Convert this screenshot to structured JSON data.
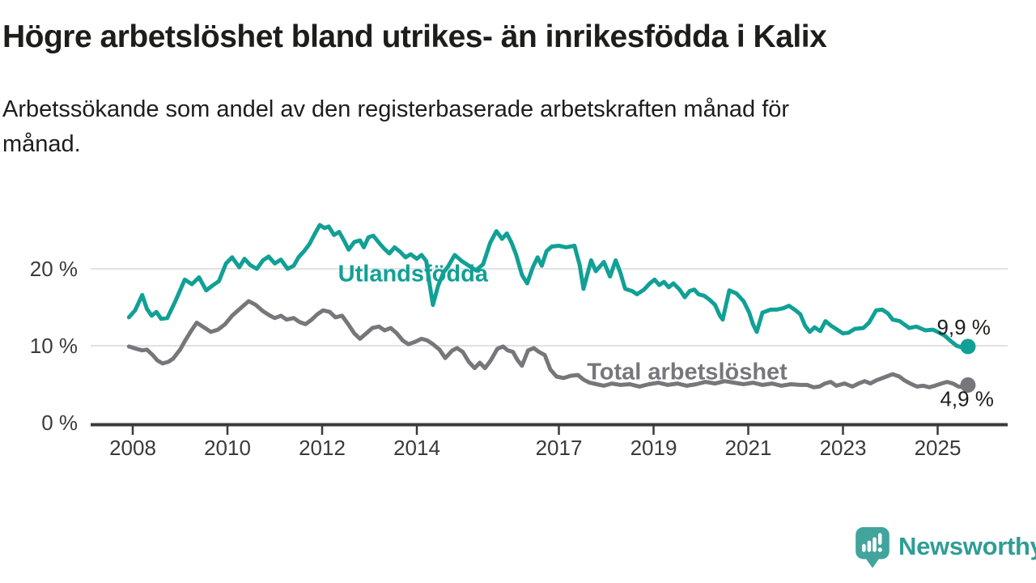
{
  "header": {
    "title": "Högre arbetslöshet bland utrikes- än inrikesfödda i Kalix",
    "subtitle": "Arbetssökande som andel av den registerbaserade arbetskraften månad för\nmånad."
  },
  "chart_data": {
    "type": "line",
    "title": "Högre arbetslöshet bland utrikes- än inrikesfödda i Kalix",
    "xlabel": "",
    "ylabel": "Arbetssökande som andel av den registerbaserade arbetskraften",
    "xlim": [
      2007.1,
      2026.5
    ],
    "ylim": [
      0,
      27
    ],
    "grid": "horizontal-light",
    "x_axis": {
      "ticks": [
        2008,
        2010,
        2012,
        2014,
        2017,
        2019,
        2021,
        2023,
        2025
      ],
      "tick_labels": [
        "2008",
        "2010",
        "2012",
        "2014",
        "2017",
        "2019",
        "2021",
        "2023",
        "2025"
      ]
    },
    "y_axis": {
      "ticks": [
        0,
        10,
        20
      ],
      "tick_labels": [
        "0 %",
        "10 %",
        "20 %"
      ]
    },
    "series": [
      {
        "name": "Total arbetslöshet",
        "color": "#76767b",
        "label_pos": [
          2019.71,
          6.6
        ],
        "end_label": "4,9 %",
        "end_value": 4.9,
        "points": [
          [
            2007.92,
            9.9
          ],
          [
            2008.08,
            9.6
          ],
          [
            2008.2,
            9.4
          ],
          [
            2008.3,
            9.5
          ],
          [
            2008.42,
            8.8
          ],
          [
            2008.52,
            8.1
          ],
          [
            2008.63,
            7.7
          ],
          [
            2008.75,
            7.9
          ],
          [
            2008.85,
            8.3
          ],
          [
            2009.0,
            9.5
          ],
          [
            2009.12,
            10.8
          ],
          [
            2009.22,
            11.8
          ],
          [
            2009.35,
            13.0
          ],
          [
            2009.5,
            12.4
          ],
          [
            2009.65,
            11.8
          ],
          [
            2009.8,
            12.1
          ],
          [
            2009.95,
            12.8
          ],
          [
            2010.1,
            13.9
          ],
          [
            2010.3,
            15.0
          ],
          [
            2010.45,
            15.8
          ],
          [
            2010.6,
            15.3
          ],
          [
            2010.75,
            14.5
          ],
          [
            2010.9,
            13.9
          ],
          [
            2011.0,
            13.6
          ],
          [
            2011.13,
            13.9
          ],
          [
            2011.25,
            13.4
          ],
          [
            2011.4,
            13.6
          ],
          [
            2011.52,
            13.1
          ],
          [
            2011.65,
            12.8
          ],
          [
            2011.78,
            13.4
          ],
          [
            2011.9,
            14.1
          ],
          [
            2012.02,
            14.6
          ],
          [
            2012.16,
            14.4
          ],
          [
            2012.28,
            13.7
          ],
          [
            2012.42,
            13.9
          ],
          [
            2012.55,
            12.8
          ],
          [
            2012.68,
            11.6
          ],
          [
            2012.8,
            10.9
          ],
          [
            2012.93,
            11.6
          ],
          [
            2013.06,
            12.3
          ],
          [
            2013.2,
            12.5
          ],
          [
            2013.32,
            12.0
          ],
          [
            2013.45,
            12.3
          ],
          [
            2013.58,
            11.6
          ],
          [
            2013.7,
            10.7
          ],
          [
            2013.82,
            10.2
          ],
          [
            2013.96,
            10.5
          ],
          [
            2014.1,
            10.9
          ],
          [
            2014.22,
            10.7
          ],
          [
            2014.34,
            10.2
          ],
          [
            2014.48,
            9.5
          ],
          [
            2014.6,
            8.4
          ],
          [
            2014.75,
            9.4
          ],
          [
            2014.85,
            9.7
          ],
          [
            2014.97,
            9.2
          ],
          [
            2015.1,
            7.9
          ],
          [
            2015.22,
            7.1
          ],
          [
            2015.33,
            7.8
          ],
          [
            2015.44,
            7.1
          ],
          [
            2015.56,
            8.1
          ],
          [
            2015.7,
            9.6
          ],
          [
            2015.82,
            9.9
          ],
          [
            2015.92,
            9.4
          ],
          [
            2016.03,
            9.2
          ],
          [
            2016.12,
            8.2
          ],
          [
            2016.22,
            7.4
          ],
          [
            2016.35,
            9.4
          ],
          [
            2016.47,
            9.7
          ],
          [
            2016.58,
            9.2
          ],
          [
            2016.7,
            8.8
          ],
          [
            2016.82,
            6.9
          ],
          [
            2016.95,
            6.0
          ],
          [
            2017.1,
            5.8
          ],
          [
            2017.25,
            6.1
          ],
          [
            2017.4,
            6.2
          ],
          [
            2017.52,
            5.6
          ],
          [
            2017.65,
            5.2
          ],
          [
            2017.8,
            5.0
          ],
          [
            2017.95,
            4.8
          ],
          [
            2018.12,
            5.1
          ],
          [
            2018.3,
            4.9
          ],
          [
            2018.5,
            5.0
          ],
          [
            2018.7,
            4.7
          ],
          [
            2018.9,
            5.0
          ],
          [
            2019.1,
            5.2
          ],
          [
            2019.3,
            4.9
          ],
          [
            2019.5,
            5.1
          ],
          [
            2019.7,
            4.8
          ],
          [
            2019.9,
            5.0
          ],
          [
            2020.1,
            5.3
          ],
          [
            2020.3,
            5.1
          ],
          [
            2020.5,
            5.4
          ],
          [
            2020.7,
            5.2
          ],
          [
            2020.9,
            5.0
          ],
          [
            2021.1,
            5.2
          ],
          [
            2021.3,
            4.9
          ],
          [
            2021.5,
            5.1
          ],
          [
            2021.7,
            4.8
          ],
          [
            2021.9,
            5.0
          ],
          [
            2022.1,
            4.9
          ],
          [
            2022.25,
            4.9
          ],
          [
            2022.38,
            4.6
          ],
          [
            2022.5,
            4.7
          ],
          [
            2022.62,
            5.1
          ],
          [
            2022.74,
            5.3
          ],
          [
            2022.86,
            4.8
          ],
          [
            2023.03,
            5.1
          ],
          [
            2023.2,
            4.7
          ],
          [
            2023.33,
            5.1
          ],
          [
            2023.46,
            5.4
          ],
          [
            2023.58,
            5.1
          ],
          [
            2023.7,
            5.5
          ],
          [
            2023.88,
            5.9
          ],
          [
            2024.05,
            6.3
          ],
          [
            2024.19,
            6.0
          ],
          [
            2024.3,
            5.5
          ],
          [
            2024.42,
            5.1
          ],
          [
            2024.56,
            4.7
          ],
          [
            2024.7,
            4.8
          ],
          [
            2024.82,
            4.6
          ],
          [
            2024.94,
            4.8
          ],
          [
            2025.08,
            5.1
          ],
          [
            2025.2,
            5.3
          ],
          [
            2025.32,
            5.1
          ],
          [
            2025.44,
            4.7
          ],
          [
            2025.56,
            4.6
          ],
          [
            2025.64,
            4.9
          ]
        ]
      },
      {
        "name": "Utlandsfödda",
        "color": "#11a095",
        "label_pos": [
          2013.92,
          19.3
        ],
        "end_label": "9,9 %",
        "end_value": 9.9,
        "points": [
          [
            2007.92,
            13.7
          ],
          [
            2008.05,
            14.6
          ],
          [
            2008.2,
            16.6
          ],
          [
            2008.3,
            14.8
          ],
          [
            2008.4,
            13.9
          ],
          [
            2008.5,
            14.4
          ],
          [
            2008.6,
            13.5
          ],
          [
            2008.73,
            13.6
          ],
          [
            2008.9,
            15.8
          ],
          [
            2009.1,
            18.6
          ],
          [
            2009.25,
            18.0
          ],
          [
            2009.4,
            18.9
          ],
          [
            2009.55,
            17.2
          ],
          [
            2009.7,
            17.9
          ],
          [
            2009.82,
            18.4
          ],
          [
            2009.97,
            20.7
          ],
          [
            2010.1,
            21.5
          ],
          [
            2010.25,
            20.2
          ],
          [
            2010.36,
            21.3
          ],
          [
            2010.48,
            20.5
          ],
          [
            2010.62,
            20.0
          ],
          [
            2010.75,
            21.1
          ],
          [
            2010.87,
            21.6
          ],
          [
            2011.0,
            20.7
          ],
          [
            2011.13,
            21.2
          ],
          [
            2011.27,
            20.0
          ],
          [
            2011.4,
            20.4
          ],
          [
            2011.5,
            21.5
          ],
          [
            2011.62,
            22.3
          ],
          [
            2011.73,
            23.2
          ],
          [
            2011.85,
            24.6
          ],
          [
            2011.95,
            25.7
          ],
          [
            2012.05,
            25.3
          ],
          [
            2012.14,
            25.5
          ],
          [
            2012.25,
            24.4
          ],
          [
            2012.36,
            24.8
          ],
          [
            2012.46,
            23.7
          ],
          [
            2012.56,
            22.5
          ],
          [
            2012.68,
            23.5
          ],
          [
            2012.8,
            23.7
          ],
          [
            2012.88,
            22.8
          ],
          [
            2012.98,
            24.1
          ],
          [
            2013.08,
            24.3
          ],
          [
            2013.2,
            23.4
          ],
          [
            2013.3,
            22.7
          ],
          [
            2013.42,
            22.0
          ],
          [
            2013.53,
            22.8
          ],
          [
            2013.65,
            22.2
          ],
          [
            2013.76,
            21.5
          ],
          [
            2013.87,
            21.9
          ],
          [
            2014.0,
            21.3
          ],
          [
            2014.1,
            21.8
          ],
          [
            2014.2,
            21.0
          ],
          [
            2014.27,
            18.0
          ],
          [
            2014.34,
            15.3
          ],
          [
            2014.45,
            17.8
          ],
          [
            2014.56,
            19.5
          ],
          [
            2014.66,
            20.3
          ],
          [
            2014.8,
            21.8
          ],
          [
            2014.95,
            21.0
          ],
          [
            2015.1,
            20.4
          ],
          [
            2015.25,
            19.8
          ],
          [
            2015.4,
            20.6
          ],
          [
            2015.55,
            23.4
          ],
          [
            2015.68,
            24.9
          ],
          [
            2015.8,
            23.9
          ],
          [
            2015.9,
            24.6
          ],
          [
            2016.0,
            23.4
          ],
          [
            2016.1,
            21.8
          ],
          [
            2016.22,
            19.2
          ],
          [
            2016.33,
            18.1
          ],
          [
            2016.45,
            20.2
          ],
          [
            2016.55,
            21.5
          ],
          [
            2016.64,
            20.4
          ],
          [
            2016.74,
            22.3
          ],
          [
            2016.85,
            22.9
          ],
          [
            2017.0,
            23.0
          ],
          [
            2017.15,
            22.8
          ],
          [
            2017.33,
            23.0
          ],
          [
            2017.44,
            20.5
          ],
          [
            2017.52,
            17.4
          ],
          [
            2017.68,
            21.1
          ],
          [
            2017.78,
            19.7
          ],
          [
            2017.95,
            20.9
          ],
          [
            2018.08,
            19.0
          ],
          [
            2018.2,
            21.1
          ],
          [
            2018.3,
            19.5
          ],
          [
            2018.4,
            17.4
          ],
          [
            2018.55,
            17.1
          ],
          [
            2018.65,
            16.7
          ],
          [
            2018.8,
            17.3
          ],
          [
            2018.92,
            18.1
          ],
          [
            2019.02,
            18.6
          ],
          [
            2019.12,
            17.9
          ],
          [
            2019.22,
            18.3
          ],
          [
            2019.32,
            17.6
          ],
          [
            2019.42,
            18.1
          ],
          [
            2019.55,
            17.3
          ],
          [
            2019.66,
            16.3
          ],
          [
            2019.76,
            17.1
          ],
          [
            2019.86,
            17.3
          ],
          [
            2019.95,
            16.7
          ],
          [
            2020.07,
            16.5
          ],
          [
            2020.18,
            16.0
          ],
          [
            2020.3,
            15.3
          ],
          [
            2020.4,
            13.9
          ],
          [
            2020.46,
            13.4
          ],
          [
            2020.6,
            17.2
          ],
          [
            2020.75,
            16.8
          ],
          [
            2020.9,
            15.8
          ],
          [
            2021.02,
            14.3
          ],
          [
            2021.1,
            12.8
          ],
          [
            2021.18,
            11.8
          ],
          [
            2021.3,
            14.3
          ],
          [
            2021.47,
            14.7
          ],
          [
            2021.6,
            14.7
          ],
          [
            2021.75,
            14.9
          ],
          [
            2021.86,
            15.2
          ],
          [
            2022.0,
            14.6
          ],
          [
            2022.1,
            14.1
          ],
          [
            2022.2,
            12.6
          ],
          [
            2022.3,
            11.8
          ],
          [
            2022.4,
            12.4
          ],
          [
            2022.52,
            11.9
          ],
          [
            2022.63,
            13.2
          ],
          [
            2022.75,
            12.6
          ],
          [
            2022.9,
            12.0
          ],
          [
            2023.0,
            11.6
          ],
          [
            2023.12,
            11.7
          ],
          [
            2023.25,
            12.2
          ],
          [
            2023.43,
            12.3
          ],
          [
            2023.55,
            13.0
          ],
          [
            2023.7,
            14.6
          ],
          [
            2023.83,
            14.7
          ],
          [
            2023.95,
            14.2
          ],
          [
            2024.05,
            13.4
          ],
          [
            2024.2,
            13.2
          ],
          [
            2024.4,
            12.3
          ],
          [
            2024.55,
            12.5
          ],
          [
            2024.74,
            12.0
          ],
          [
            2024.9,
            12.1
          ],
          [
            2025.0,
            11.8
          ],
          [
            2025.15,
            11.3
          ],
          [
            2025.26,
            10.7
          ],
          [
            2025.4,
            10.0
          ],
          [
            2025.55,
            9.7
          ],
          [
            2025.64,
            9.9
          ]
        ]
      }
    ]
  },
  "branding": {
    "logo_text": "Newsworthy",
    "logo_icon": "speech-bubble-bar-chart",
    "brand_color": "#2f9d96",
    "icon_color": "#41a49d"
  },
  "colors": {
    "teal_series": "#11a095",
    "gray_series": "#76767b",
    "axis": "#3a3a3a",
    "gridline": "#d9d9d9",
    "text": "#1d1d1b"
  }
}
